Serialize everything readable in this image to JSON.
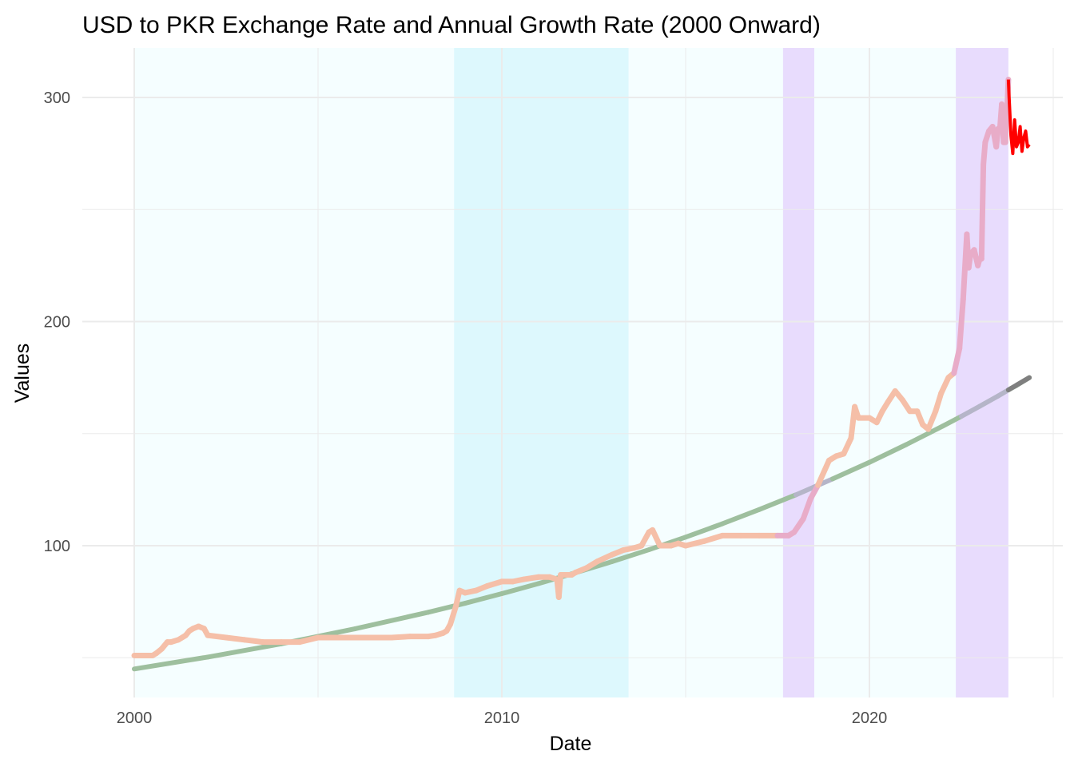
{
  "chart_data": {
    "type": "line",
    "title": "USD to PKR Exchange Rate and Annual Growth Rate (2000 Onward)",
    "xlabel": "Date",
    "ylabel": "Values",
    "xlim": [
      1999.8,
      2024.0
    ],
    "ylim": [
      45,
      334
    ],
    "x_ticks": [
      2000,
      2010,
      2020
    ],
    "x_tick_labels": [
      "2000",
      "2010",
      "2020"
    ],
    "y_ticks": [
      100,
      200,
      300
    ],
    "y_tick_labels": [
      "100",
      "200",
      "300"
    ],
    "grid": true,
    "legend": "none",
    "colors": {
      "background_band": "#f5feff",
      "band_cyan": "#ddf8fd",
      "band_lavender": "#e8dcfd",
      "exchange_rate_line": "#f5bfa8",
      "exchange_rate_band_line": "#e8acc8",
      "exchange_rate_latest": "#ff0000",
      "trend_line": "#9ebf9e",
      "trend_band_line": "#b5b5c8",
      "trend_latest": "#7f7f7f",
      "grid": "#ebebeb"
    },
    "shaded_periods": [
      {
        "start": 2000.0,
        "end": 2008.7,
        "color": "#f5feff"
      },
      {
        "start": 2008.7,
        "end": 2013.45,
        "color": "#ddf8fd"
      },
      {
        "start": 2013.45,
        "end": 2017.65,
        "color": "#f5feff"
      },
      {
        "start": 2017.65,
        "end": 2018.5,
        "color": "#e8dcfd"
      },
      {
        "start": 2018.5,
        "end": 2022.35,
        "color": "#f5feff"
      },
      {
        "start": 2022.35,
        "end": 2023.78,
        "color": "#e8dcfd"
      }
    ],
    "series": [
      {
        "x": [
          2000.0,
          2000.5,
          2000.6,
          2000.75,
          2000.9,
          2001.0,
          2001.2,
          2001.4,
          2001.5,
          2001.6,
          2001.75,
          2001.9,
          2002.0,
          2002.5,
          2003.0,
          2003.5,
          2004.0,
          2004.5,
          2005.0,
          2006.0,
          2007.0,
          2007.5,
          2008.0,
          2008.2,
          2008.4,
          2008.5,
          2008.6,
          2008.75,
          2008.85,
          2009.0,
          2009.3,
          2009.6,
          2010.0,
          2010.3,
          2010.6,
          2011.0,
          2011.3,
          2011.5,
          2011.55,
          2011.6,
          2011.9,
          2012.0,
          2012.3,
          2012.6,
          2013.0,
          2013.3,
          2013.6,
          2013.8,
          2014.0,
          2014.1,
          2014.3,
          2014.6,
          2014.8,
          2015.0,
          2015.5,
          2016.0,
          2016.5,
          2017.0,
          2017.5,
          2017.8,
          2017.95,
          2018.2,
          2018.4,
          2018.6,
          2018.9,
          2019.1,
          2019.3,
          2019.5,
          2019.6,
          2019.7,
          2020.0,
          2020.2,
          2020.35,
          2020.5,
          2020.7,
          2020.9,
          2021.1,
          2021.3,
          2021.45,
          2021.6,
          2021.8,
          2021.95,
          2022.15,
          2022.3,
          2022.45,
          2022.55,
          2022.65,
          2022.7,
          2022.75,
          2022.85,
          2022.95,
          2023.0,
          2023.05,
          2023.1,
          2023.15,
          2023.25,
          2023.35,
          2023.45,
          2023.5,
          2023.55,
          2023.6,
          2023.65,
          2023.7,
          2023.72,
          2023.75,
          2023.78
        ],
        "values": [
          51,
          51,
          52,
          54,
          57,
          57,
          58,
          60,
          62,
          63,
          64,
          63,
          60,
          59,
          58,
          57,
          57,
          57,
          59,
          59,
          59,
          59.5,
          59.5,
          60,
          61,
          62,
          65,
          73,
          80,
          79,
          80,
          82,
          84,
          84,
          85,
          86,
          86,
          85,
          77,
          87,
          87,
          88,
          90,
          93,
          96,
          98,
          99,
          100,
          106,
          107,
          100,
          100,
          101,
          100,
          102,
          104.5,
          104.5,
          104.5,
          104.5,
          104.5,
          106,
          112,
          121,
          127,
          138,
          140,
          141,
          148,
          162,
          157,
          157,
          155,
          160,
          164,
          169,
          165,
          160,
          160,
          154,
          152,
          160,
          168,
          175,
          177,
          188,
          210,
          239,
          224,
          230,
          232,
          225,
          228,
          228,
          270,
          280,
          285,
          287,
          278,
          286,
          286,
          297,
          280,
          280,
          292,
          296,
          308
        ]
      },
      {
        "x": [
          2023.78,
          2023.8,
          2023.85,
          2023.9,
          2023.95,
          2024.0,
          2024.05,
          2024.1,
          2024.15,
          2024.2,
          2024.25,
          2024.3,
          2024.35
        ],
        "values": [
          308,
          300,
          283,
          275,
          290,
          278,
          280,
          287,
          276,
          282,
          285,
          278,
          279
        ]
      },
      {
        "x": [
          2000.0,
          2002.0,
          2004.0,
          2006.0,
          2008.0,
          2009.0,
          2010.0,
          2011.0,
          2012.0,
          2013.0,
          2014.0,
          2015.0,
          2016.0,
          2017.0,
          2018.0,
          2019.0,
          2020.0,
          2021.0,
          2022.0,
          2022.5,
          2023.0,
          2023.5,
          2023.78,
          2024.0,
          2024.35
        ],
        "values": [
          45,
          50.3,
          56.2,
          62.9,
          70.3,
          74.3,
          78.6,
          83.1,
          87.9,
          92.9,
          98.2,
          103.8,
          109.8,
          116.1,
          122.7,
          129.8,
          137.2,
          145.1,
          153.4,
          157.7,
          162.2,
          166.8,
          169.5,
          171.5,
          175
        ]
      }
    ]
  }
}
